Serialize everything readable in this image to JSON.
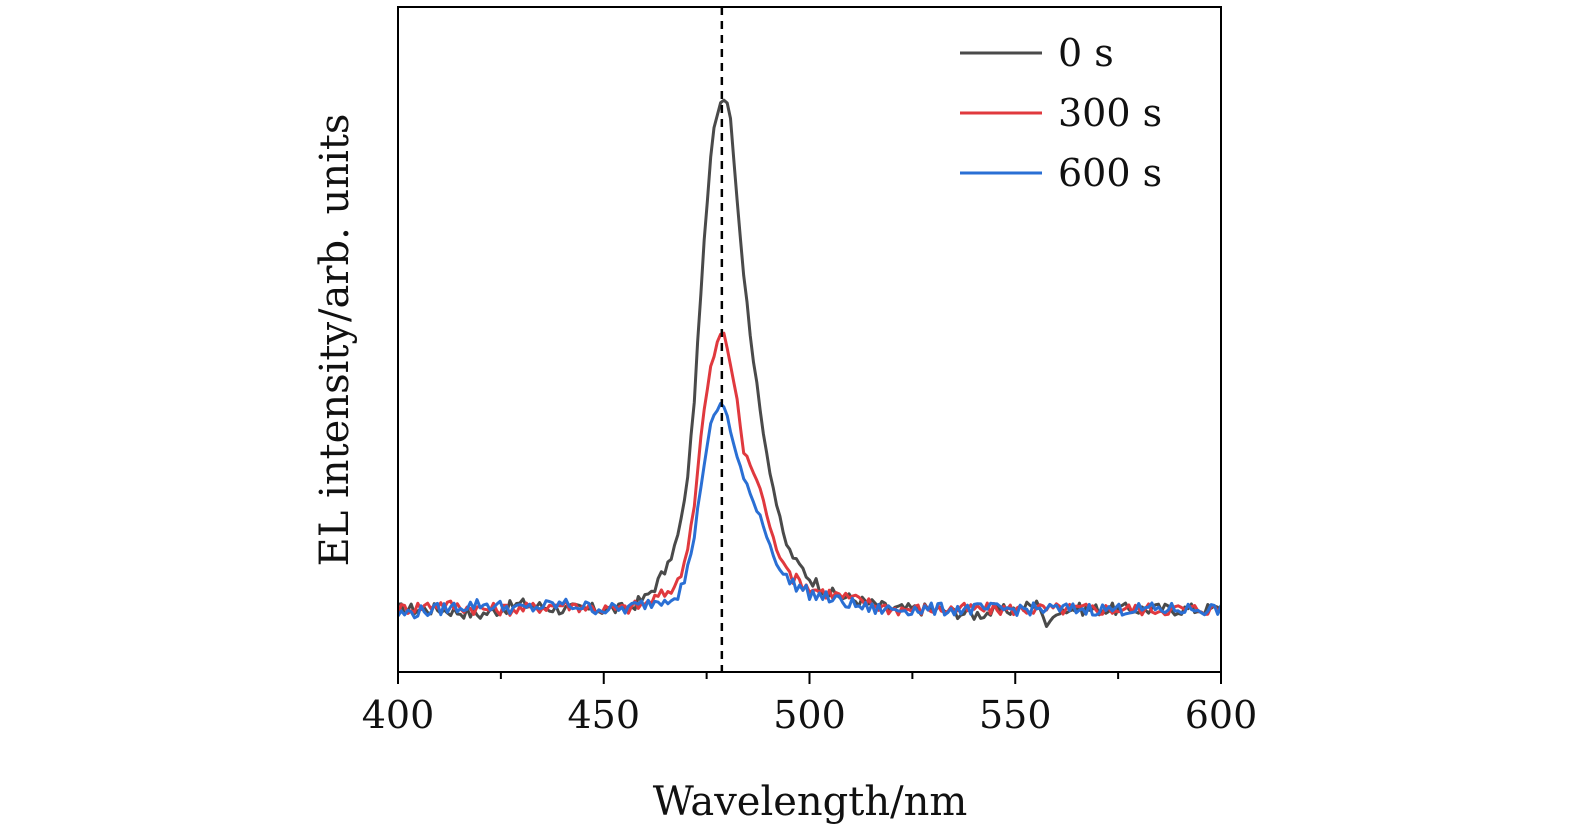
{
  "chart_data": {
    "type": "line",
    "title": "",
    "xlabel": "Wavelength/nm",
    "ylabel": "EL intensity/arb. units",
    "xlim": [
      400,
      600
    ],
    "ylim": [
      -0.12,
      1.15
    ],
    "x_ticks": [
      400,
      450,
      500,
      550,
      600
    ],
    "x_tick_labels": [
      "400",
      "450",
      "500",
      "550",
      "600"
    ],
    "x_minor_ticks": [
      425,
      475,
      525,
      575
    ],
    "y_ticks_shown": false,
    "legend_position": "top-right",
    "reference_line": {
      "x": 478.7,
      "style": "dashed",
      "color": "#000000"
    },
    "peak_wavelength": 479,
    "series": [
      {
        "name": "0 s",
        "color": "#4a4a4a",
        "x": [
          400,
          410,
          420,
          430,
          440,
          450,
          455,
          460,
          463,
          466,
          468,
          470,
          472,
          474,
          476,
          477,
          478,
          479,
          480,
          481,
          482,
          484,
          486,
          488,
          490,
          492,
          494,
          496,
          498,
          500,
          505,
          510,
          515,
          520,
          530,
          540,
          550,
          556,
          558,
          560,
          570,
          580,
          590,
          600
        ],
        "values": [
          0.0,
          0.0,
          -0.01,
          0.01,
          0.0,
          0.0,
          0.0,
          0.02,
          0.05,
          0.09,
          0.14,
          0.22,
          0.4,
          0.66,
          0.86,
          0.93,
          0.96,
          0.98,
          0.97,
          0.93,
          0.82,
          0.64,
          0.5,
          0.38,
          0.28,
          0.2,
          0.13,
          0.1,
          0.08,
          0.06,
          0.03,
          0.02,
          0.01,
          0.0,
          0.0,
          -0.01,
          0.0,
          0.01,
          -0.04,
          0.0,
          0.0,
          0.0,
          0.0,
          0.0
        ]
      },
      {
        "name": "300 s",
        "color": "#e0393e",
        "x": [
          400,
          410,
          420,
          430,
          440,
          450,
          455,
          460,
          465,
          468,
          470,
          472,
          474,
          476,
          478,
          479,
          480,
          482,
          484,
          486,
          488,
          490,
          492,
          494,
          496,
          498,
          500,
          505,
          510,
          515,
          520,
          530,
          540,
          550,
          560,
          570,
          580,
          590,
          600
        ],
        "values": [
          0.0,
          0.01,
          0.0,
          0.0,
          0.01,
          0.0,
          0.0,
          0.01,
          0.03,
          0.05,
          0.1,
          0.2,
          0.36,
          0.46,
          0.52,
          0.53,
          0.5,
          0.42,
          0.3,
          0.27,
          0.23,
          0.17,
          0.11,
          0.09,
          0.06,
          0.05,
          0.04,
          0.03,
          0.02,
          0.01,
          0.0,
          0.0,
          0.0,
          0.0,
          0.0,
          0.0,
          0.0,
          0.0,
          0.0
        ]
      },
      {
        "name": "600 s",
        "color": "#2a6fd4",
        "x": [
          400,
          410,
          420,
          430,
          440,
          450,
          455,
          460,
          465,
          468,
          470,
          472,
          474,
          476,
          478,
          479,
          480,
          482,
          484,
          486,
          488,
          490,
          492,
          494,
          496,
          498,
          500,
          505,
          510,
          515,
          520,
          530,
          540,
          550,
          560,
          570,
          580,
          590,
          600
        ],
        "values": [
          -0.01,
          0.0,
          0.01,
          0.0,
          0.01,
          0.0,
          0.0,
          0.01,
          0.02,
          0.03,
          0.06,
          0.14,
          0.26,
          0.35,
          0.39,
          0.39,
          0.37,
          0.3,
          0.25,
          0.21,
          0.18,
          0.13,
          0.09,
          0.06,
          0.05,
          0.04,
          0.03,
          0.02,
          0.01,
          0.0,
          0.0,
          0.0,
          0.0,
          0.0,
          0.0,
          0.0,
          0.0,
          0.0,
          0.0
        ]
      }
    ]
  }
}
